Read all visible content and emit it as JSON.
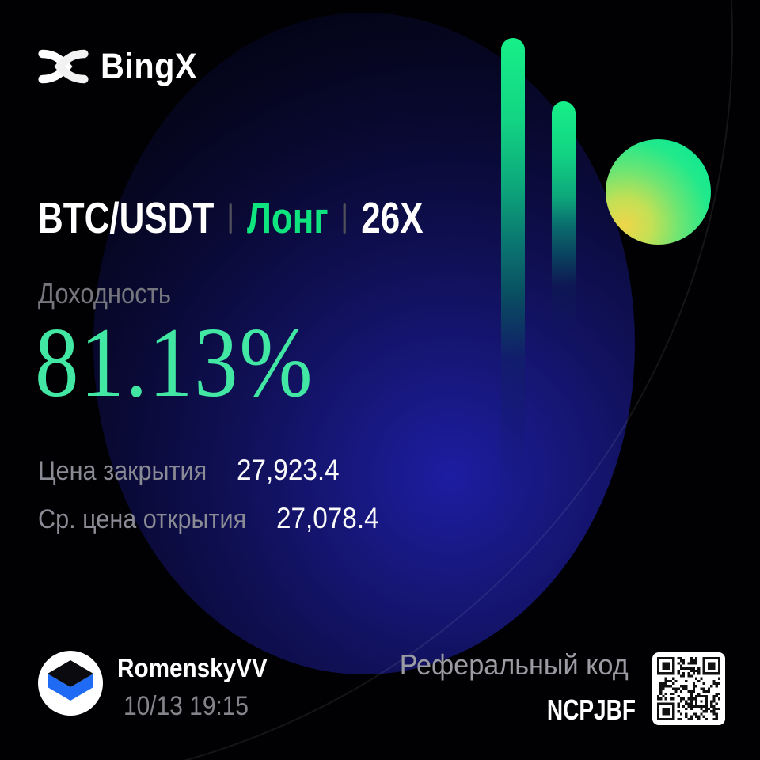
{
  "brand": {
    "name": "BingX"
  },
  "position": {
    "pair": "BTC/USDT",
    "side": "Лонг",
    "leverage": "26X"
  },
  "pnl": {
    "label": "Доходность",
    "value": "81.13%"
  },
  "prices": [
    {
      "label": "Цена закрытия",
      "value": "27,923.4"
    },
    {
      "label": "Ср. цена открытия",
      "value": "27,078.4"
    }
  ],
  "user": {
    "name": "RomenskyVV",
    "datetime": "10/13 19:15"
  },
  "referral": {
    "label": "Реферальный код",
    "code": "NCPJBF"
  },
  "icons": {
    "logo": "bingx-x-mark",
    "avatar": "cube-avatar",
    "qr": "referral-qr-code"
  },
  "colors": {
    "background": "#010103",
    "accent_green": "#0ee57e",
    "pnl_green": "#41e7a3",
    "bar_green_top": "#17ef88",
    "ball_yellow": "#efd54a",
    "blue_glow": "#1d1da2",
    "muted_label": "#8b8b95",
    "avatar_blue": "#1f6bf6"
  }
}
